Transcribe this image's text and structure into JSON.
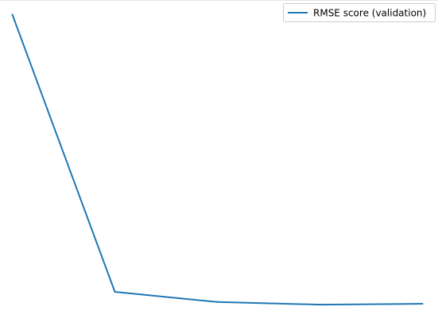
{
  "chart_data": {
    "type": "line",
    "title": "",
    "xlabel": "",
    "ylabel": "",
    "x": [
      0,
      1,
      2,
      3,
      4
    ],
    "series": [
      {
        "name": "RMSE score (validation)",
        "color": "#1f77b4",
        "values": [
          1.0,
          0.044,
          0.009,
          0.0,
          0.003
        ]
      }
    ],
    "xlim": [
      -0.12,
      4.15
    ],
    "ylim": [
      -0.06,
      1.05
    ],
    "grid": false,
    "legend": {
      "position": "top-right"
    },
    "axes_visible": false
  }
}
